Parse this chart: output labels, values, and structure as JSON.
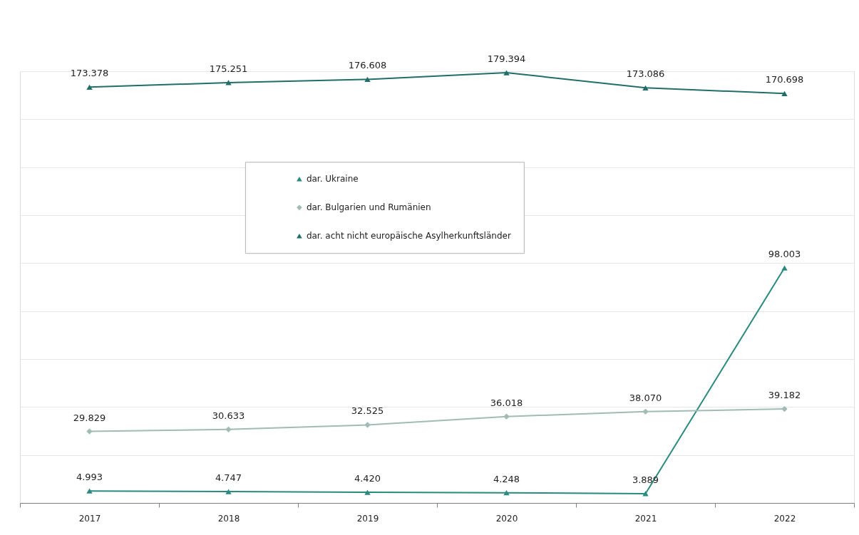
{
  "chart_data": {
    "type": "line",
    "categories": [
      "2017",
      "2018",
      "2019",
      "2020",
      "2021",
      "2022"
    ],
    "series": [
      {
        "name": "dar. Ukraine",
        "color": "#2a8a7f",
        "marker": "triangle",
        "values": [
          4993,
          4747,
          4420,
          4248,
          3889,
          98003
        ],
        "value_labels": [
          "4.993",
          "4.747",
          "4.420",
          "4.248",
          "3.889",
          "98.003"
        ]
      },
      {
        "name": "dar. Bulgarien und Rumänien",
        "color": "#a0bcb5",
        "marker": "diamond",
        "values": [
          29829,
          30633,
          32525,
          36018,
          38070,
          39182
        ],
        "value_labels": [
          "29.829",
          "30.633",
          "32.525",
          "36.018",
          "38.070",
          "39.182"
        ]
      },
      {
        "name": "dar. acht nicht europäische Asylherkunftsländer",
        "color": "#1f6f68",
        "marker": "triangle",
        "values": [
          173378,
          175251,
          176608,
          179394,
          173086,
          170698
        ],
        "value_labels": [
          "173.378",
          "175.251",
          "176.608",
          "179.394",
          "173.086",
          "170.698"
        ]
      }
    ],
    "ylim": [
      0,
      180000
    ],
    "yticks": [
      {
        "value": 0,
        "label": null
      },
      {
        "value": 20000,
        "label": null
      },
      {
        "value": 40000,
        "label": null
      },
      {
        "value": 60000,
        "label": null
      },
      {
        "value": 80000,
        "label": null
      },
      {
        "value": 100000,
        "label": null
      },
      {
        "value": 120000,
        "label": null
      },
      {
        "value": 140000,
        "label": null
      },
      {
        "value": 160000,
        "label": null
      },
      {
        "value": 180000,
        "label": null
      }
    ],
    "tick_labels": "x",
    "grid": "y",
    "legend": "top",
    "line_style": "solid"
  }
}
